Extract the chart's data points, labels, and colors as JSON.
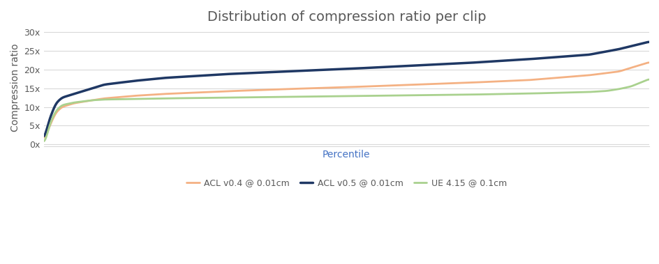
{
  "title": "Distribution of compression ratio per clip",
  "title_color": "#595959",
  "xlabel": "Percentile",
  "xlabel_color": "#4472c4",
  "ylabel": "Compression ratio",
  "ylabel_color": "#595959",
  "background_color": "#ffffff",
  "grid_color": "#d9d9d9",
  "yticks": [
    0,
    5,
    10,
    15,
    20,
    25,
    30
  ],
  "ytick_labels": [
    "0x",
    "5x",
    "10x",
    "15x",
    "20x",
    "25x",
    "30x"
  ],
  "ylim": [
    -0.5,
    31
  ],
  "xlim": [
    0,
    100
  ],
  "series": [
    {
      "label": "ACL v0.4 @ 0.01cm",
      "color": "#f4b183",
      "linewidth": 2.0
    },
    {
      "label": "ACL v0.5 @ 0.01cm",
      "color": "#1f3864",
      "linewidth": 2.5
    },
    {
      "label": "UE 4.15 @ 0.1cm",
      "color": "#a9d18e",
      "linewidth": 2.0
    }
  ],
  "legend_text_color": "#595959",
  "title_fontsize": 14,
  "axis_fontsize": 10,
  "tick_fontsize": 9,
  "legend_fontsize": 9
}
